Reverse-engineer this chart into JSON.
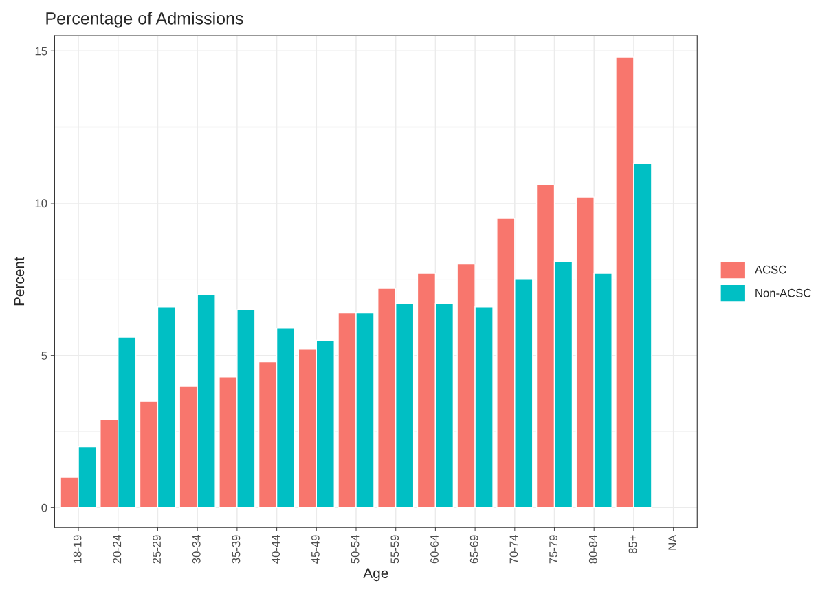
{
  "chart_data": {
    "type": "bar",
    "title": "Percentage of Admissions",
    "xlabel": "Age",
    "ylabel": "Percent",
    "categories": [
      "18-19",
      "20-24",
      "25-29",
      "30-34",
      "35-39",
      "40-44",
      "45-49",
      "50-54",
      "55-59",
      "60-64",
      "65-69",
      "70-74",
      "75-79",
      "80-84",
      "85+",
      "NA"
    ],
    "series": [
      {
        "name": "ACSC",
        "color": "#f8766d",
        "values": [
          1.0,
          2.9,
          3.5,
          4.0,
          4.3,
          4.8,
          5.2,
          6.4,
          7.2,
          7.7,
          8.0,
          9.5,
          10.6,
          10.2,
          14.8,
          null
        ]
      },
      {
        "name": "Non-ACSC",
        "color": "#00bfc4",
        "values": [
          2.0,
          5.6,
          6.6,
          7.0,
          6.5,
          5.9,
          5.5,
          6.4,
          6.7,
          6.7,
          6.6,
          7.5,
          8.1,
          7.7,
          11.3,
          null
        ]
      }
    ],
    "ylim": [
      -0.65,
      15.5
    ],
    "yticks": [
      0,
      5,
      10,
      15
    ],
    "grid": true,
    "legend": "right"
  }
}
